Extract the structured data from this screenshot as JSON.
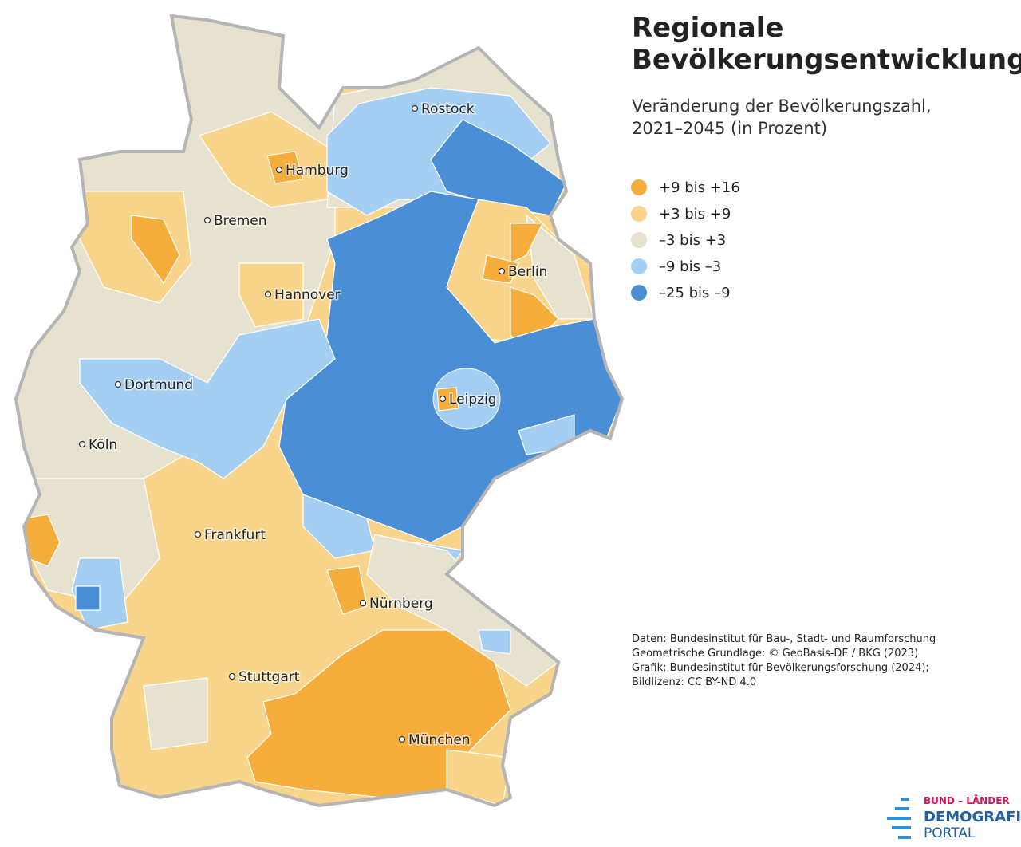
{
  "title": [
    "Regionale",
    "Bevölkerungsentwicklung"
  ],
  "subtitle": [
    "Veränderung der Bevölkerungszahl,",
    "2021–2045 (in Prozent)"
  ],
  "legend": [
    {
      "color": "#f5ad3c",
      "label": "+9 bis +16"
    },
    {
      "color": "#f8d58b",
      "label": "+3 bis +9"
    },
    {
      "color": "#e6e2cf",
      "label": "–3 bis +3"
    },
    {
      "color": "#a5cff2",
      "label": "–9 bis –3"
    },
    {
      "color": "#4a8ed6",
      "label": "–25 bis –9"
    }
  ],
  "cities": [
    "Rostock",
    "Hamburg",
    "Bremen",
    "Berlin",
    "Hannover",
    "Dortmund",
    "Leipzig",
    "Köln",
    "Frankfurt",
    "Nürnberg",
    "Stuttgart",
    "München"
  ],
  "sources": [
    "Daten: Bundesinstitut für Bau-, Stadt- und Raumforschung",
    "Geometrische Grundlage: © GeoBasis-DE / BKG (2023)",
    "Grafik: Bundesinstitut für Bevölkerungsforschung (2024);",
    "Bildlizenz: CC BY-ND 4.0"
  ],
  "logo": [
    "BUND – LÄNDER",
    "DEMOGRAFIE",
    "PORTAL"
  ]
}
